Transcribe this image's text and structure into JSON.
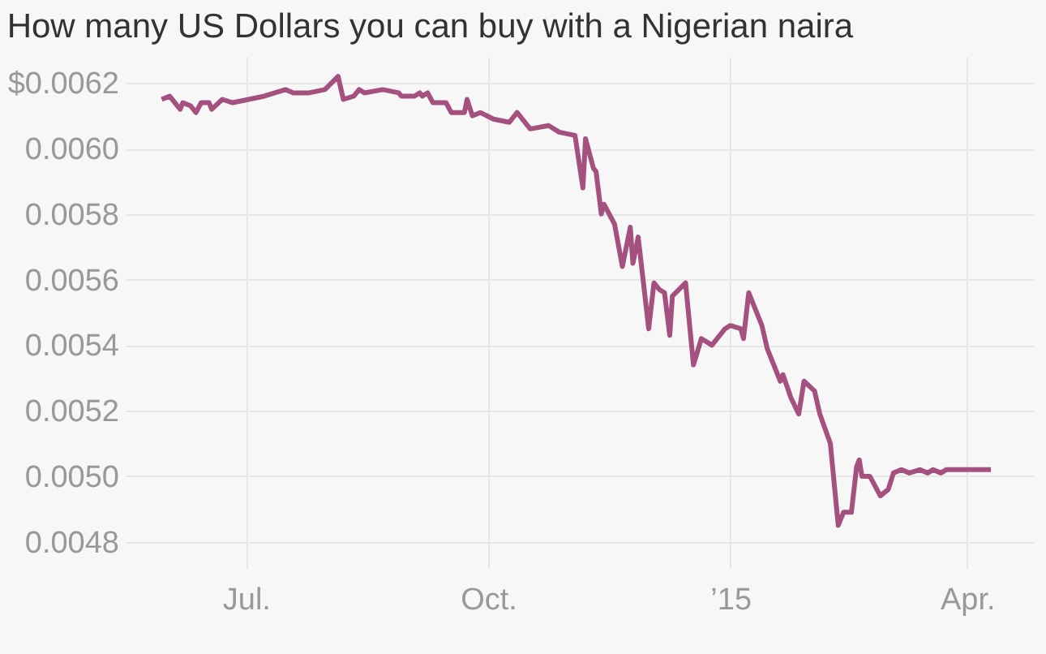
{
  "chart_data": {
    "type": "line",
    "title": "How many US Dollars you can buy with a Nigerian naira",
    "x": [
      "2014-05-30",
      "2014-06-02",
      "2014-06-04",
      "2014-06-06",
      "2014-06-07",
      "2014-06-10",
      "2014-06-12",
      "2014-06-14",
      "2014-06-17",
      "2014-06-18",
      "2014-06-22",
      "2014-06-26",
      "2014-07-02",
      "2014-07-08",
      "2014-07-16",
      "2014-07-19",
      "2014-07-22",
      "2014-07-25",
      "2014-07-31",
      "2014-08-05",
      "2014-08-07",
      "2014-08-11",
      "2014-08-13",
      "2014-08-15",
      "2014-08-22",
      "2014-08-28",
      "2014-08-29",
      "2014-09-03",
      "2014-09-05",
      "2014-09-06",
      "2014-09-08",
      "2014-09-10",
      "2014-09-15",
      "2014-09-17",
      "2014-09-22",
      "2014-09-23",
      "2014-09-25",
      "2014-09-28",
      "2014-10-03",
      "2014-10-09",
      "2014-10-12",
      "2014-10-17",
      "2014-10-24",
      "2014-10-28",
      "2014-11-03",
      "2014-11-06",
      "2014-11-07",
      "2014-11-10",
      "2014-11-11",
      "2014-11-13",
      "2014-11-14",
      "2014-11-18",
      "2014-11-21",
      "2014-11-24",
      "2014-11-25",
      "2014-11-27",
      "2014-12-01",
      "2014-12-03",
      "2014-12-05",
      "2014-12-07",
      "2014-12-09",
      "2014-12-10",
      "2014-12-15",
      "2014-12-18",
      "2014-12-21",
      "2014-12-25",
      "2014-12-30",
      "2015-01-01",
      "2015-01-05",
      "2015-01-06",
      "2015-01-08",
      "2015-01-13",
      "2015-01-15",
      "2015-01-20",
      "2015-01-21",
      "2015-01-24",
      "2015-01-27",
      "2015-01-29",
      "2015-02-02",
      "2015-02-04",
      "2015-02-08",
      "2015-02-11",
      "2015-02-13",
      "2015-02-16",
      "2015-02-18",
      "2015-02-19",
      "2015-02-20",
      "2015-02-23",
      "2015-02-27",
      "2015-03-02",
      "2015-03-04",
      "2015-03-07",
      "2015-03-10",
      "2015-03-14",
      "2015-03-17",
      "2015-03-19",
      "2015-03-22",
      "2015-03-24",
      "2015-04-10"
    ],
    "series": [
      {
        "color": "#a4517f",
        "values": [
          0.00615,
          0.00616,
          0.00614,
          0.00612,
          0.00614,
          0.00613,
          0.00611,
          0.00614,
          0.00614,
          0.00612,
          0.00615,
          0.00614,
          0.00615,
          0.00616,
          0.00618,
          0.00617,
          0.00617,
          0.00617,
          0.00618,
          0.00622,
          0.00615,
          0.00616,
          0.00618,
          0.00617,
          0.00618,
          0.00617,
          0.00616,
          0.00616,
          0.00617,
          0.00616,
          0.00617,
          0.00614,
          0.00614,
          0.00611,
          0.00611,
          0.00615,
          0.0061,
          0.00611,
          0.00609,
          0.00608,
          0.00611,
          0.00606,
          0.00607,
          0.00605,
          0.00604,
          0.00588,
          0.00603,
          0.00594,
          0.00593,
          0.0058,
          0.00583,
          0.00577,
          0.00564,
          0.00576,
          0.00565,
          0.00573,
          0.00545,
          0.00559,
          0.00557,
          0.00556,
          0.00543,
          0.00555,
          0.00559,
          0.00534,
          0.00542,
          0.0054,
          0.00545,
          0.00546,
          0.00545,
          0.00542,
          0.00556,
          0.00546,
          0.00539,
          0.00529,
          0.00531,
          0.00524,
          0.00519,
          0.00529,
          0.00526,
          0.00519,
          0.0051,
          0.00485,
          0.00489,
          0.00489,
          0.00503,
          0.00505,
          0.005,
          0.005,
          0.00494,
          0.00496,
          0.00501,
          0.00502,
          0.00501,
          0.00502,
          0.00501,
          0.00502,
          0.00501,
          0.00502,
          0.00502
        ]
      }
    ],
    "xlim": [
      "2014-05-16",
      "2015-04-26"
    ],
    "xticks": [
      {
        "value": "2014-07-01",
        "label": "Jul."
      },
      {
        "value": "2014-10-01",
        "label": "Oct."
      },
      {
        "value": "2015-01-01",
        "label": "’15"
      },
      {
        "value": "2015-04-01",
        "label": "Apr."
      }
    ],
    "ylim": [
      0.00472,
      0.00628
    ],
    "yticks": [
      {
        "value": 0.0048,
        "label": "0.0048"
      },
      {
        "value": 0.005,
        "label": "0.0050"
      },
      {
        "value": 0.0052,
        "label": "0.0052"
      },
      {
        "value": 0.0054,
        "label": "0.0054"
      },
      {
        "value": 0.0056,
        "label": "0.0056"
      },
      {
        "value": 0.0058,
        "label": "0.0058"
      },
      {
        "value": 0.006,
        "label": "0.0060"
      },
      {
        "value": 0.0062,
        "label": "$0.0062"
      }
    ],
    "grid": true,
    "marker": "none",
    "line_style": "solid"
  }
}
